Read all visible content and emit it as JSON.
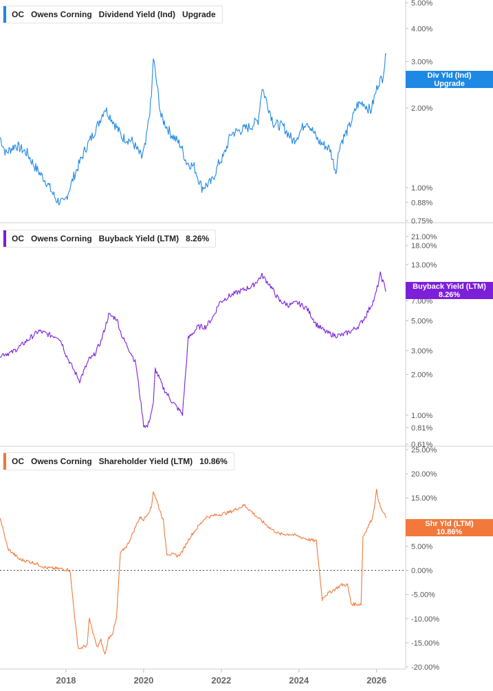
{
  "chart_data": [
    {
      "type": "line",
      "ticker": "OC",
      "company": "Owens Corning",
      "metric": "Dividend Yield (Ind)",
      "legend_value": "Upgrade",
      "tag": {
        "line1": "Div Yld (Ind)",
        "line2": "Upgrade"
      },
      "color": "#1E88E5",
      "scale": "log",
      "ylim": [
        0.75,
        5.0
      ],
      "y_ticks": [
        "0.75%",
        "0.88%",
        "1.00%",
        "2.00%",
        "3.00%",
        "4.00%",
        "5.00%"
      ],
      "y_tick_values": [
        0.75,
        0.88,
        1.0,
        2.0,
        3.0,
        4.0,
        5.0
      ],
      "series": [
        {
          "x": [
            2016.3,
            2016.45,
            2016.7,
            2017.0,
            2017.2,
            2017.5,
            2017.75,
            2017.95,
            2018.2,
            2018.5,
            2018.8,
            2019.0,
            2019.2,
            2019.45,
            2019.7,
            2019.95,
            2020.05,
            2020.2,
            2020.25,
            2020.45,
            2020.7,
            2020.95,
            2021.1,
            2021.3,
            2021.5,
            2021.75,
            2021.95,
            2022.05,
            2022.25,
            2022.5,
            2022.75,
            2022.95,
            2023.05,
            2023.35,
            2023.6,
            2023.85,
            2024.0,
            2024.2,
            2024.5,
            2024.8,
            2024.95,
            2025.05,
            2025.3,
            2025.5,
            2025.65,
            2025.85,
            2026.05,
            2026.15,
            2026.25
          ],
          "values": [
            1.55,
            1.35,
            1.45,
            1.35,
            1.2,
            1.05,
            0.9,
            0.87,
            1.1,
            1.4,
            1.7,
            2.0,
            1.8,
            1.55,
            1.5,
            1.3,
            1.45,
            2.2,
            3.1,
            1.85,
            1.6,
            1.45,
            1.25,
            1.2,
            1.0,
            1.05,
            1.25,
            1.3,
            1.6,
            1.65,
            1.7,
            1.8,
            2.4,
            1.75,
            1.7,
            1.5,
            1.6,
            1.8,
            1.5,
            1.4,
            1.15,
            1.45,
            1.7,
            2.05,
            2.1,
            1.95,
            2.5,
            2.6,
            3.2
          ]
        }
      ]
    },
    {
      "type": "line",
      "ticker": "OC",
      "company": "Owens Corning",
      "metric": "Buyback Yield (LTM)",
      "legend_value": "8.26%",
      "tag": {
        "line1": "Buyback Yield (LTM)",
        "line2": "8.26%"
      },
      "color": "#7B1FD8",
      "scale": "log",
      "ylim": [
        0.61,
        25.0
      ],
      "y_ticks": [
        "0.61%",
        "0.81%",
        "1.00%",
        "2.00%",
        "3.00%",
        "5.00%",
        "7.00%",
        "13.00%",
        "18.00%",
        "21.00%"
      ],
      "y_tick_values": [
        0.61,
        0.81,
        1.0,
        2.0,
        3.0,
        5.0,
        7.0,
        13.0,
        18.0,
        21.0
      ],
      "series": [
        {
          "x": [
            2016.3,
            2016.6,
            2016.8,
            2017.3,
            2017.6,
            2017.8,
            2017.9,
            2018.0,
            2018.15,
            2018.35,
            2018.6,
            2018.7,
            2018.9,
            2019.1,
            2019.3,
            2019.45,
            2019.7,
            2019.8,
            2020.0,
            2020.1,
            2020.25,
            2020.3,
            2020.5,
            2020.7,
            2020.9,
            2021.0,
            2021.15,
            2021.4,
            2021.6,
            2021.8,
            2021.95,
            2022.2,
            2022.5,
            2022.8,
            2023.05,
            2023.25,
            2023.5,
            2023.75,
            2023.95,
            2024.2,
            2024.45,
            2024.7,
            2024.9,
            2025.1,
            2025.35,
            2025.55,
            2025.7,
            2025.95,
            2026.1,
            2026.25
          ],
          "values": [
            2.8,
            2.9,
            3.2,
            4.2,
            3.9,
            3.8,
            3.4,
            2.8,
            2.3,
            1.8,
            2.6,
            2.7,
            3.5,
            5.5,
            5.2,
            3.8,
            2.8,
            2.4,
            0.85,
            0.82,
            1.2,
            2.2,
            1.6,
            1.3,
            1.1,
            1.02,
            3.7,
            4.5,
            4.5,
            5.4,
            6.8,
            7.6,
            8.3,
            9.0,
            10.8,
            9.2,
            7.0,
            6.5,
            6.8,
            6.2,
            4.7,
            4.1,
            3.9,
            3.9,
            4.2,
            4.6,
            5.3,
            7.3,
            11.0,
            8.26
          ]
        }
      ]
    },
    {
      "type": "line",
      "ticker": "OC",
      "company": "Owens Corning",
      "metric": "Shareholder Yield (LTM)",
      "legend_value": "10.86%",
      "tag": {
        "line1": "Shr Yld (LTM)",
        "line2": "10.86%"
      },
      "color": "#F2783B",
      "scale": "linear",
      "ylim": [
        -20.0,
        25.0
      ],
      "y_ticks": [
        "-20.00%",
        "-15.00%",
        "-10.00%",
        "-5.00%",
        "0.00%",
        "5.00%",
        "10.00%",
        "15.00%",
        "20.00%",
        "25.00%"
      ],
      "y_tick_values": [
        -20,
        -15,
        -10,
        -5,
        0,
        5,
        10,
        15,
        20,
        25
      ],
      "zero_line": true,
      "series": [
        {
          "x": [
            2016.3,
            2016.5,
            2016.8,
            2017.2,
            2017.5,
            2017.9,
            2018.1,
            2018.3,
            2018.35,
            2018.55,
            2018.6,
            2018.8,
            2018.9,
            2019.0,
            2019.1,
            2019.2,
            2019.3,
            2019.4,
            2019.6,
            2019.9,
            2020.0,
            2020.2,
            2020.25,
            2020.5,
            2020.6,
            2020.9,
            2021.0,
            2021.2,
            2021.4,
            2021.6,
            2021.9,
            2022.2,
            2022.6,
            2022.8,
            2023.0,
            2023.3,
            2023.5,
            2023.8,
            2024.0,
            2024.2,
            2024.45,
            2024.6,
            2024.62,
            2024.9,
            2025.1,
            2025.25,
            2025.35,
            2025.6,
            2025.65,
            2025.9,
            2026.0,
            2026.1,
            2026.25
          ],
          "values": [
            11.0,
            4.5,
            2.3,
            1.5,
            0.5,
            0.3,
            0.1,
            -15.5,
            -16.2,
            -15.5,
            -10.0,
            -16.0,
            -14.5,
            -17.5,
            -14.0,
            -13.0,
            -10.0,
            3.5,
            5.5,
            11.0,
            10.5,
            13.0,
            16.5,
            10.5,
            3.5,
            3.0,
            4.0,
            7.0,
            9.0,
            11.0,
            11.5,
            12.0,
            13.5,
            12.0,
            10.5,
            8.5,
            7.5,
            7.5,
            7.0,
            6.5,
            6.0,
            -6.0,
            -5.5,
            -4.0,
            -3.0,
            -3.0,
            -7.0,
            -7.0,
            7.0,
            11.0,
            16.5,
            13.0,
            10.86
          ]
        }
      ]
    }
  ],
  "x_axis": {
    "ticks": [
      "2018",
      "2020",
      "2022",
      "2024",
      "2026"
    ],
    "tick_values": [
      2018,
      2020,
      2022,
      2024,
      2026
    ],
    "xlim": [
      2016.3,
      2026.75
    ]
  }
}
